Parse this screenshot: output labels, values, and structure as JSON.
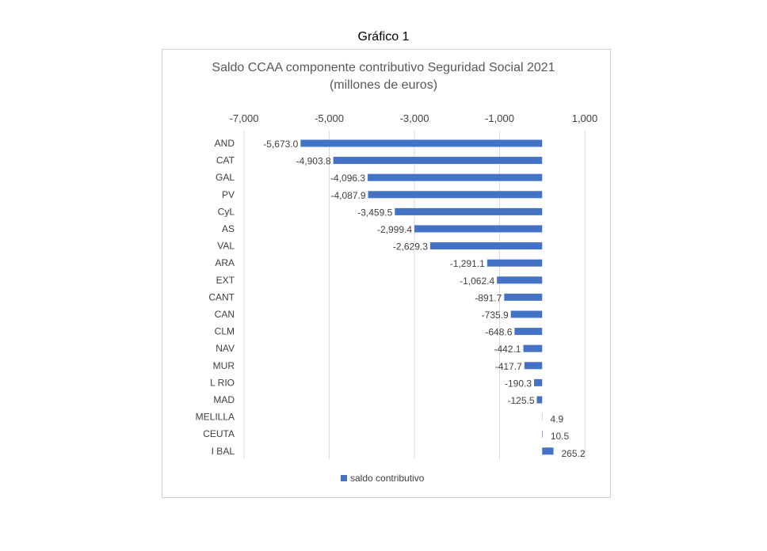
{
  "page_title": "Gráfico 1",
  "colors": {
    "bar": "#4472c4",
    "grid": "#d9d9d9",
    "text": "#404040"
  },
  "chart_data": {
    "type": "bar",
    "orientation": "horizontal",
    "title": "Saldo CCAA componente contributivo Seguridad Social 2021",
    "subtitle": "(millones de euros)",
    "xlabel": "",
    "ylabel": "",
    "xlim": [
      -7000,
      1000
    ],
    "xticks": [
      -7000,
      -5000,
      -3000,
      -1000,
      1000
    ],
    "xtick_labels": [
      "-7,000",
      "-5,000",
      "-3,000",
      "-1,000",
      "1,000"
    ],
    "grid": true,
    "legend_position": "bottom",
    "categories": [
      "AND",
      "CAT",
      "GAL",
      "PV",
      "CyL",
      "AS",
      "VAL",
      "ARA",
      "EXT",
      "CANT",
      "CAN",
      "CLM",
      "NAV",
      "MUR",
      "L RIO",
      "MAD",
      "MELILLA",
      "CEUTA",
      "I BAL"
    ],
    "series": [
      {
        "name": "saldo contributivo",
        "values": [
          -5673.0,
          -4903.8,
          -4096.3,
          -4087.9,
          -3459.5,
          -2999.4,
          -2629.3,
          -1291.1,
          -1062.4,
          -891.7,
          -735.9,
          -648.6,
          -442.1,
          -417.7,
          -190.3,
          -125.5,
          4.9,
          10.5,
          265.2
        ],
        "labels": [
          "-5,673.0",
          "-4,903.8",
          "-4,096.3",
          "-4,087.9",
          "-3,459.5",
          "-2,999.4",
          "-2,629.3",
          "-1,291.1",
          "-1,062.4",
          "-891.7",
          "-735.9",
          "-648.6",
          "-442.1",
          "-417.7",
          "-190.3",
          "-125.5",
          "4.9",
          "10.5",
          "265.2"
        ]
      }
    ]
  }
}
